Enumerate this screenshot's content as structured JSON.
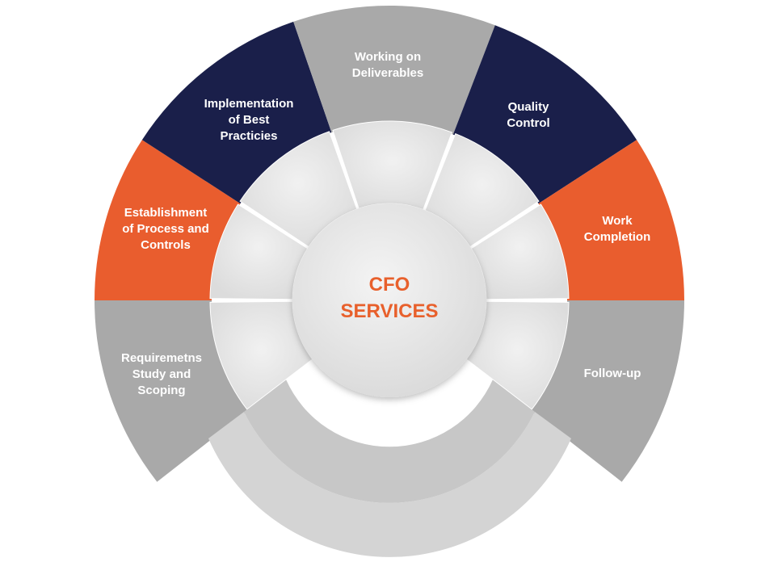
{
  "center": {
    "line1": "CFO",
    "line2": "SERVICES"
  },
  "colors": {
    "navy": "#1a1f4a",
    "orange": "#e95d2e",
    "gray": "#a9a9a9",
    "inner_ring": "#e6e6e6",
    "center_text": "#e8602c"
  },
  "segments": [
    {
      "id": "requirements",
      "lines": [
        "Requiremetns",
        "Study and",
        "Scoping"
      ],
      "color": "gray"
    },
    {
      "id": "establishment",
      "lines": [
        "Establishment",
        "of Process and",
        "Controls"
      ],
      "color": "orange"
    },
    {
      "id": "implementation",
      "lines": [
        "Implementation",
        "of Best",
        "Practicies"
      ],
      "color": "navy"
    },
    {
      "id": "deliverables",
      "lines": [
        "Working on",
        "Deliverables"
      ],
      "color": "gray"
    },
    {
      "id": "quality",
      "lines": [
        "Quality",
        "Control"
      ],
      "color": "navy"
    },
    {
      "id": "completion",
      "lines": [
        "Work",
        "Completion"
      ],
      "color": "orange"
    },
    {
      "id": "followup",
      "lines": [
        "Follow-up"
      ],
      "color": "gray"
    }
  ]
}
